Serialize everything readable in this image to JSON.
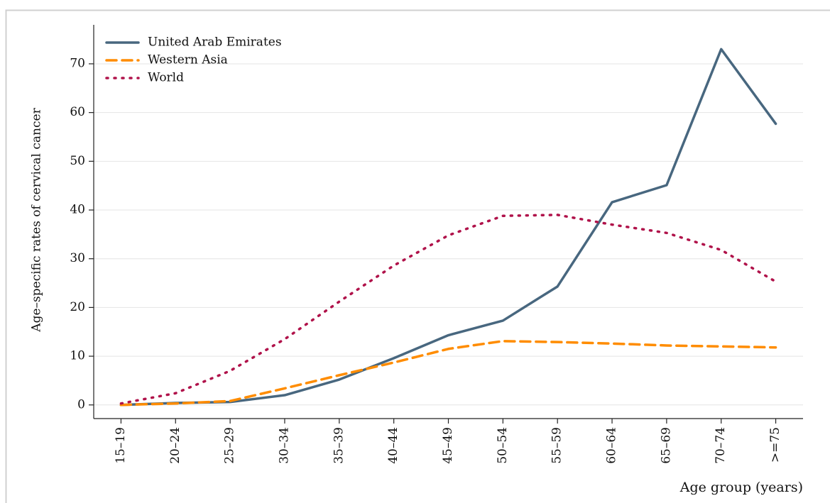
{
  "chart_data": {
    "type": "line",
    "y_label": "Age–specific rates of cervical cancer",
    "x_label": "Age group (years)",
    "categories": [
      "15–19",
      "20–24",
      "25–29",
      "30–34",
      "35–39",
      "40–44",
      "45–49",
      "50–54",
      "55–59",
      "60–64",
      "65–69",
      "70–74",
      ">=75"
    ],
    "series": [
      {
        "name": "United Arab Emirates",
        "color": "#48677f",
        "dash": "solid",
        "values": [
          0,
          0.4,
          0.6,
          2,
          5.2,
          9.6,
          14.3,
          17.3,
          24.3,
          41.6,
          45.1,
          73,
          57.7
        ]
      },
      {
        "name": "Western Asia",
        "color": "#ff8c00",
        "dash": "dash",
        "values": [
          0,
          0.3,
          0.8,
          3.4,
          6.1,
          8.7,
          11.5,
          13.1,
          12.9,
          12.6,
          12.2,
          12.0,
          11.8
        ]
      },
      {
        "name": "World",
        "color": "#b0124a",
        "dash": "dot",
        "values": [
          0.3,
          2.4,
          7,
          13.5,
          21.2,
          28.6,
          34.8,
          38.8,
          39,
          37,
          35.3,
          31.8,
          25.3
        ]
      }
    ],
    "ylim": [
      -2.8,
      78
    ],
    "yticks": [
      0,
      10,
      20,
      30,
      40,
      50,
      60,
      70
    ],
    "grid": true,
    "legend": "top-left"
  }
}
